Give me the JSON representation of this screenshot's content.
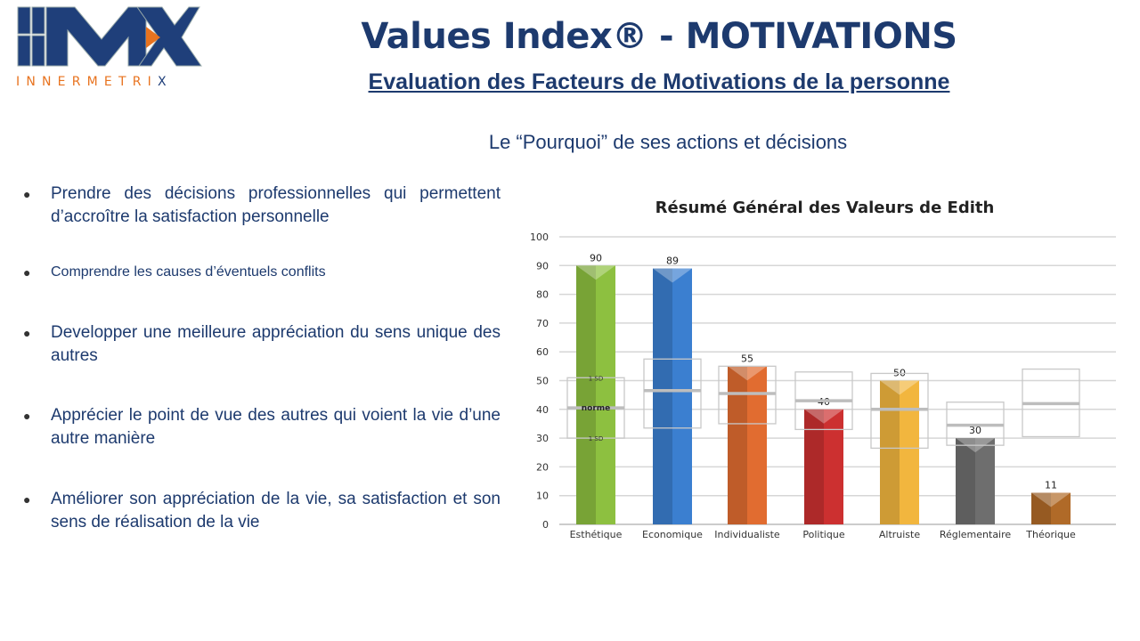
{
  "header": {
    "logo_text": "IMX",
    "logo_subtext": "INNERMETRIX",
    "title": "Values Index® - MOTIVATIONS",
    "subtitle": "Evaluation des Facteurs de Motivations de la personne",
    "tagline": "Le “Pourquoi” de ses actions et décisions"
  },
  "bullets": [
    {
      "text": "Prendre des décisions professionnelles qui permettent d’accroître la satisfaction personnelle"
    },
    {
      "text": "Comprendre les causes d’éventuels conflits"
    },
    {
      "text": "Developper une meilleure appréciation du sens unique des autres"
    },
    {
      "text": "Apprécier le point de vue des autres qui voient la vie d’une autre manière"
    },
    {
      "text": "Améliorer son appréciation de la vie, sa satisfaction et son sens de réalisation de la vie"
    }
  ],
  "colors": {
    "brand_blue": "#1d3a6e",
    "brand_orange": "#e8731f"
  },
  "chart_data": {
    "type": "bar",
    "title": "Résumé Général des Valeurs de Edith",
    "categories": [
      "Esthétique",
      "Economique",
      "Individualiste",
      "Politique",
      "Altruiste",
      "Réglementaire",
      "Théorique"
    ],
    "values": [
      90,
      89,
      55,
      40,
      50,
      30,
      11
    ],
    "colors": [
      "#8dc040",
      "#3b7fd0",
      "#e16c30",
      "#cc3030",
      "#f2b63e",
      "#6e6e6e",
      "#b06a28"
    ],
    "norm": [
      40.5,
      46.5,
      45.5,
      43,
      40,
      34.5,
      42
    ],
    "sd_low": [
      30,
      33.5,
      35,
      33,
      26.5,
      27.5,
      30.5
    ],
    "sd_high": [
      51,
      57.5,
      55,
      53,
      52.5,
      42.5,
      54
    ],
    "norm_labels": {
      "sd": "1 SD",
      "norm": "norme"
    },
    "ylim": [
      0,
      100
    ],
    "yticks": [
      0,
      10,
      20,
      30,
      40,
      50,
      60,
      70,
      80,
      90,
      100
    ],
    "grid": true,
    "legend": "none"
  }
}
